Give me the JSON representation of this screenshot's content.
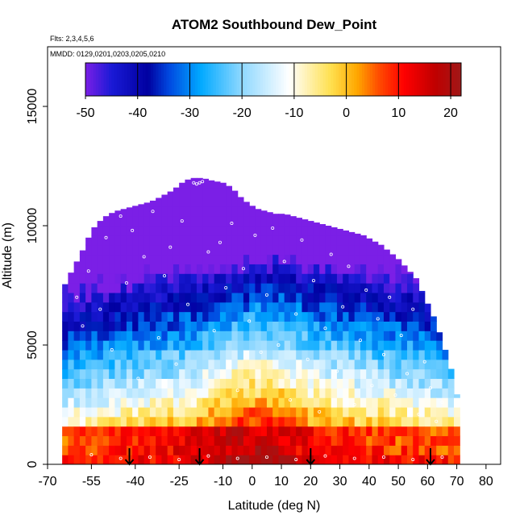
{
  "chart_data": {
    "type": "heatmap",
    "title": "ATOM2 Southbound Dew_Point",
    "subtitle_flights": "Flts: 2,3,4,5,6",
    "subtitle_dates": "MMDD: 0129,0201,0203,0205,0210",
    "xlabel": "Latitude (deg N)",
    "ylabel": "Altitude (m)",
    "xlim": [
      -70,
      85
    ],
    "ylim": [
      0,
      17500
    ],
    "x_ticks": [
      -70,
      -55,
      -40,
      -25,
      -10,
      0,
      10,
      20,
      30,
      40,
      50,
      60,
      70,
      80
    ],
    "x_tick_labels": [
      "-70",
      "-55",
      "-40",
      "-25",
      "-10",
      "0",
      "10",
      "20",
      "30",
      "40",
      "50",
      "60",
      "70",
      "80"
    ],
    "y_ticks": [
      0,
      5000,
      10000,
      15000
    ],
    "y_tick_labels": [
      "0",
      "5000",
      "10000",
      "15000"
    ],
    "colorbar": {
      "min": -50,
      "max": 22,
      "ticks": [
        -50,
        -40,
        -30,
        -20,
        -10,
        0,
        10,
        20
      ],
      "tick_labels": [
        "-50",
        "-40",
        "-30",
        "-20",
        "-10",
        "0",
        "10",
        "20"
      ],
      "colors": [
        "#7b1fe6",
        "#1a1ad6",
        "#0000a0",
        "#0048e0",
        "#00a8ff",
        "#8fd8ff",
        "#ffffff",
        "#ffe050",
        "#ffa800",
        "#ff5000",
        "#ff0000",
        "#c00000",
        "#a01818"
      ],
      "stops": [
        -50,
        -45,
        -38,
        -34,
        -28,
        -20,
        -11,
        -3,
        2,
        6,
        11,
        17,
        22
      ]
    },
    "envelope": {
      "lat": [
        -65,
        -63,
        -60,
        -57,
        -55,
        -52,
        -50,
        -47,
        -44,
        -41,
        -38,
        -35,
        -33,
        -30,
        -27,
        -24,
        -21,
        -17,
        -14,
        -10,
        -7,
        -4,
        -1,
        2,
        5,
        8,
        11,
        14,
        17,
        20,
        23,
        26,
        29,
        32,
        35,
        38,
        41,
        44,
        47,
        50,
        53,
        56,
        59,
        62,
        65,
        68,
        71
      ],
      "top_alt": [
        7300,
        7800,
        8500,
        9200,
        9800,
        10200,
        10400,
        10600,
        10700,
        10800,
        10900,
        11000,
        11100,
        11300,
        11500,
        11800,
        12000,
        12000,
        11900,
        11800,
        11600,
        11200,
        10900,
        10700,
        10600,
        10500,
        10500,
        10400,
        10300,
        10200,
        10100,
        10000,
        9900,
        9800,
        9700,
        9600,
        9400,
        9200,
        8900,
        8600,
        8200,
        7800,
        7000,
        6200,
        5200,
        4000,
        2400
      ]
    },
    "sounding_markers_lat": [
      -42,
      -18,
      20,
      61
    ],
    "sample_points": [
      {
        "x": -60,
        "y": 7000
      },
      {
        "x": -58,
        "y": 5800
      },
      {
        "x": -56,
        "y": 8100
      },
      {
        "x": -52,
        "y": 6500
      },
      {
        "x": -50,
        "y": 9500
      },
      {
        "x": -48,
        "y": 4800
      },
      {
        "x": -45,
        "y": 10400
      },
      {
        "x": -43,
        "y": 7600
      },
      {
        "x": -41,
        "y": 9800
      },
      {
        "x": -39,
        "y": 3600
      },
      {
        "x": -37,
        "y": 8700
      },
      {
        "x": -34,
        "y": 10600
      },
      {
        "x": -32,
        "y": 5300
      },
      {
        "x": -30,
        "y": 7900
      },
      {
        "x": -28,
        "y": 9100
      },
      {
        "x": -26,
        "y": 4200
      },
      {
        "x": -24,
        "y": 10200
      },
      {
        "x": -22,
        "y": 6700
      },
      {
        "x": -20,
        "y": 11800
      },
      {
        "x": -19,
        "y": 11750
      },
      {
        "x": -18,
        "y": 11800
      },
      {
        "x": -17,
        "y": 11850
      },
      {
        "x": -15,
        "y": 8900
      },
      {
        "x": -13,
        "y": 5600
      },
      {
        "x": -11,
        "y": 9300
      },
      {
        "x": -9,
        "y": 7400
      },
      {
        "x": -7,
        "y": 10100
      },
      {
        "x": -5,
        "y": 3100
      },
      {
        "x": -3,
        "y": 8200
      },
      {
        "x": -1,
        "y": 6000
      },
      {
        "x": 1,
        "y": 9600
      },
      {
        "x": 3,
        "y": 4700
      },
      {
        "x": 5,
        "y": 7100
      },
      {
        "x": 7,
        "y": 9900
      },
      {
        "x": 9,
        "y": 5000
      },
      {
        "x": 11,
        "y": 8500
      },
      {
        "x": 13,
        "y": 2700
      },
      {
        "x": 15,
        "y": 6300
      },
      {
        "x": 17,
        "y": 9400
      },
      {
        "x": 19,
        "y": 4400
      },
      {
        "x": 21,
        "y": 7700
      },
      {
        "x": 23,
        "y": 2200
      },
      {
        "x": 25,
        "y": 5700
      },
      {
        "x": 27,
        "y": 8800
      },
      {
        "x": 29,
        "y": 3900
      },
      {
        "x": 31,
        "y": 6600
      },
      {
        "x": 33,
        "y": 8300
      },
      {
        "x": 35,
        "y": 2500
      },
      {
        "x": 37,
        "y": 5200
      },
      {
        "x": 39,
        "y": 7300
      },
      {
        "x": 41,
        "y": 3300
      },
      {
        "x": 43,
        "y": 6100
      },
      {
        "x": 45,
        "y": 4600
      },
      {
        "x": 47,
        "y": 7000
      },
      {
        "x": 49,
        "y": 2900
      },
      {
        "x": 51,
        "y": 5400
      },
      {
        "x": 53,
        "y": 3800
      },
      {
        "x": 55,
        "y": 6500
      },
      {
        "x": 57,
        "y": 2100
      },
      {
        "x": 59,
        "y": 4300
      },
      {
        "x": 61,
        "y": 3200
      },
      {
        "x": 63,
        "y": 1800
      },
      {
        "x": 65,
        "y": 2600
      },
      {
        "x": -55,
        "y": 400
      },
      {
        "x": -45,
        "y": 250
      },
      {
        "x": -35,
        "y": 300
      },
      {
        "x": -25,
        "y": 200
      },
      {
        "x": -15,
        "y": 350
      },
      {
        "x": -5,
        "y": 250
      },
      {
        "x": 5,
        "y": 300
      },
      {
        "x": 15,
        "y": 200
      },
      {
        "x": 25,
        "y": 350
      },
      {
        "x": 35,
        "y": 250
      },
      {
        "x": 45,
        "y": 300
      },
      {
        "x": 55,
        "y": 200
      },
      {
        "x": 65,
        "y": 300
      }
    ]
  }
}
